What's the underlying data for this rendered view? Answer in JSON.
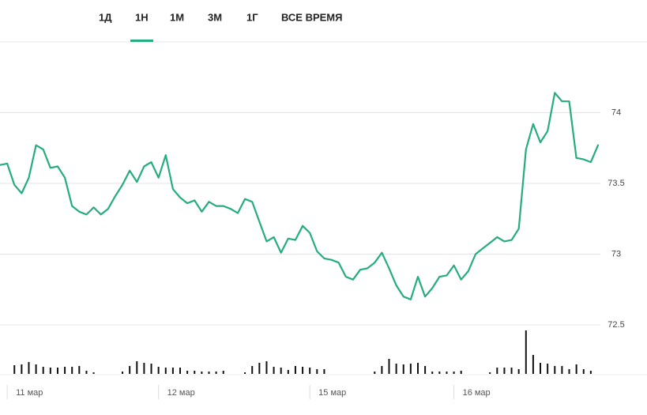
{
  "tabs": [
    "1Д",
    "1Н",
    "1М",
    "3М",
    "1Г",
    "ВСЕ ВРЕМЯ"
  ],
  "active_tab": 1,
  "chart_data": {
    "type": "line",
    "categories": [
      null,
      "11 мар",
      null,
      null,
      null,
      null,
      null,
      null,
      null,
      null,
      null,
      null,
      null,
      null,
      null,
      null,
      null,
      null,
      null,
      null,
      null,
      null,
      "12 мар",
      null,
      null,
      null,
      null,
      null,
      null,
      null,
      null,
      null,
      null,
      null,
      null,
      null,
      null,
      null,
      null,
      null,
      null,
      null,
      null,
      "15 мар",
      null,
      null,
      null,
      null,
      null,
      null,
      null,
      null,
      null,
      null,
      null,
      null,
      null,
      null,
      null,
      null,
      null,
      null,
      null,
      "16 мар",
      null,
      null,
      null,
      null,
      null,
      null,
      null,
      null,
      null,
      null,
      null,
      null,
      null,
      null,
      null,
      null,
      null,
      null,
      null,
      null
    ],
    "series": [
      {
        "name": "price",
        "color": "#25ac7f",
        "values": [
          73.63,
          73.64,
          73.49,
          73.43,
          73.54,
          73.77,
          73.74,
          73.61,
          73.62,
          73.54,
          73.34,
          73.3,
          73.28,
          73.33,
          73.28,
          73.32,
          73.41,
          73.49,
          73.59,
          73.51,
          73.62,
          73.65,
          73.54,
          73.7,
          73.46,
          73.4,
          73.36,
          73.38,
          73.3,
          73.37,
          73.34,
          73.34,
          73.32,
          73.29,
          73.39,
          73.37,
          73.23,
          73.09,
          73.12,
          73.01,
          73.11,
          73.1,
          73.2,
          73.15,
          73.02,
          72.97,
          72.96,
          72.94,
          72.84,
          72.82,
          72.89,
          72.9,
          72.94,
          73.01,
          72.9,
          72.78,
          72.7,
          72.68,
          72.84,
          72.7,
          72.76,
          72.84,
          72.85,
          72.92,
          72.82,
          72.88,
          73.0,
          73.04,
          73.08,
          73.12,
          73.09,
          73.1,
          73.18,
          73.74,
          73.92,
          73.79,
          73.87,
          74.14,
          74.08,
          74.08,
          73.68,
          73.67,
          73.65,
          73.77
        ]
      },
      {
        "name": "volume",
        "color": "#111111",
        "values": [
          null,
          null,
          11,
          12,
          15,
          12,
          9,
          8,
          8,
          9,
          9,
          10,
          4,
          2,
          null,
          null,
          null,
          3,
          10,
          16,
          14,
          13,
          9,
          8,
          8,
          8,
          4,
          4,
          3,
          3,
          3,
          4,
          null,
          null,
          2,
          10,
          14,
          16,
          9,
          8,
          5,
          10,
          9,
          8,
          6,
          6,
          null,
          null,
          null,
          null,
          null,
          null,
          3,
          10,
          19,
          13,
          12,
          13,
          14,
          10,
          3,
          3,
          3,
          3,
          4,
          null,
          null,
          null,
          2,
          8,
          8,
          8,
          6,
          55,
          24,
          14,
          13,
          10,
          10,
          6,
          12,
          6,
          4,
          null
        ]
      }
    ],
    "ylim": [
      72.5,
      74.5
    ],
    "yticks": [
      72.5,
      73,
      73.5,
      74
    ],
    "grid": true
  }
}
